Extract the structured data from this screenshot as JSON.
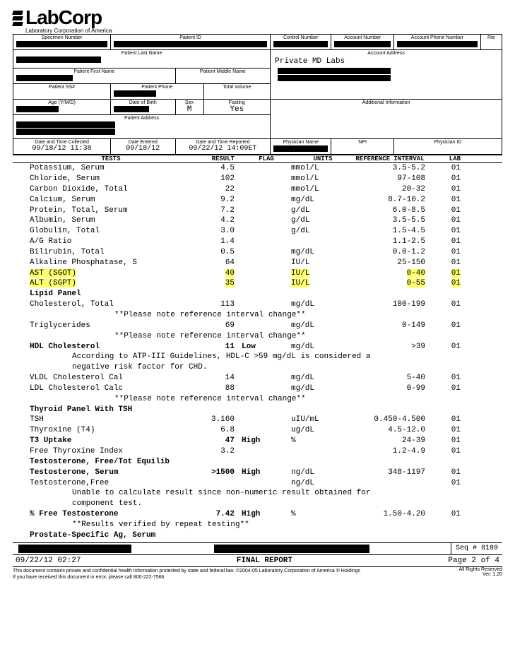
{
  "logo": {
    "main": "LabCorp",
    "sub": "Laboratory Corporation of America"
  },
  "header_labels": {
    "specimen": "Specimen Number",
    "patient_id": "Patient ID",
    "control": "Control Number",
    "account_num": "Account Number",
    "account_phone": "Account Phone Number",
    "rte": "Rte",
    "last_name": "Patient Last Name",
    "account_addr": "Account Address",
    "first_name": "Patient First Name",
    "middle_name": "Patient Middle Name",
    "ssn": "Patient SS#",
    "phone": "Patient Phone",
    "volume": "Total Volume",
    "age": "Age (Y/M/D)",
    "dob": "Date of Birth",
    "sex": "Sex",
    "fasting": "Fasting",
    "address": "Patient Address",
    "additional": "Additional Information",
    "collected": "Date and Time Collected",
    "entered": "Date Entered",
    "reported": "Date and Time Reported",
    "physician": "Physician Name",
    "npi": "NPI",
    "physician_id": "Physician ID"
  },
  "header_values": {
    "account_name": "Private MD Labs",
    "sex": "M",
    "fasting": "Yes",
    "collected": "09/18/12 11:38",
    "entered": "09/18/12",
    "reported": "09/22/12 14:09ET"
  },
  "cols": {
    "tests": "TESTS",
    "result": "RESULT",
    "flag": "FLAG",
    "units": "UNITS",
    "ref": "REFERENCE INTERVAL",
    "lab": "LAB"
  },
  "rows": [
    {
      "t": "Potassium, Serum",
      "r": "4.5",
      "f": "",
      "u": "mmol/L",
      "ref": "3.5-5.2",
      "l": "01"
    },
    {
      "t": "Chloride, Serum",
      "r": "102",
      "f": "",
      "u": "mmol/L",
      "ref": "97-108",
      "l": "01"
    },
    {
      "t": "Carbon Dioxide, Total",
      "r": "22",
      "f": "",
      "u": "mmol/L",
      "ref": "20-32",
      "l": "01"
    },
    {
      "t": "Calcium, Serum",
      "r": "9.2",
      "f": "",
      "u": "mg/dL",
      "ref": "8.7-10.2",
      "l": "01"
    },
    {
      "t": "Protein, Total, Serum",
      "r": "7.2",
      "f": "",
      "u": "g/dL",
      "ref": "6.0-8.5",
      "l": "01"
    },
    {
      "t": "Albumin, Serum",
      "r": "4.2",
      "f": "",
      "u": "g/dL",
      "ref": "3.5-5.5",
      "l": "01"
    },
    {
      "t": "Globulin, Total",
      "r": "3.0",
      "f": "",
      "u": "g/dL",
      "ref": "1.5-4.5",
      "l": "01"
    },
    {
      "t": "A/G Ratio",
      "r": "1.4",
      "f": "",
      "u": "",
      "ref": "1.1-2.5",
      "l": "01"
    },
    {
      "t": "Bilirubin, Total",
      "r": "0.5",
      "f": "",
      "u": "mg/dL",
      "ref": "0.0-1.2",
      "l": "01"
    },
    {
      "t": "Alkaline Phosphatase, S",
      "r": "64",
      "f": "",
      "u": "IU/L",
      "ref": "25-150",
      "l": "01"
    },
    {
      "t": "AST (SGOT)",
      "r": "40",
      "f": "",
      "u": "IU/L",
      "ref": "0-40",
      "l": "01",
      "hl": true
    },
    {
      "t": "ALT (SGPT)",
      "r": "35",
      "f": "",
      "u": "IU/L",
      "ref": "0-55",
      "l": "01",
      "hl": true
    }
  ],
  "lipid_hdr": "Lipid Panel",
  "lipid": [
    {
      "t": "Cholesterol, Total",
      "r": "113",
      "f": "",
      "u": "mg/dL",
      "ref": "100-199",
      "l": "01"
    }
  ],
  "note_ref": "**Please note reference interval change**",
  "trig": {
    "t": "Triglycerides",
    "r": "69",
    "f": "",
    "u": "mg/dL",
    "ref": "0-149",
    "l": "01"
  },
  "hdl": {
    "t": "HDL Cholesterol",
    "r": "11",
    "f": "Low",
    "u": "mg/dL",
    "ref": ">39",
    "l": "01",
    "bold": true
  },
  "hdl_note1": "According to ATP-III Guidelines, HDL-C >59 mg/dL is considered a",
  "hdl_note2": "negative risk factor for CHD.",
  "vldl": {
    "t": "VLDL Cholesterol Cal",
    "r": "14",
    "f": "",
    "u": "mg/dL",
    "ref": "5-40",
    "l": "01"
  },
  "ldl": {
    "t": "LDL Cholesterol Calc",
    "r": "88",
    "f": "",
    "u": "mg/dL",
    "ref": "0-99",
    "l": "01"
  },
  "thyroid_hdr": "Thyroid Panel With TSH",
  "thyroid": [
    {
      "t": "TSH",
      "r": "3.160",
      "f": "",
      "u": "uIU/mL",
      "ref": "0.450-4.500",
      "l": "01"
    },
    {
      "t": "Thyroxine (T4)",
      "r": "6.8",
      "f": "",
      "u": "ug/dL",
      "ref": "4.5-12.0",
      "l": "01"
    },
    {
      "t": "T3 Uptake",
      "r": "47",
      "f": "High",
      "u": "%",
      "ref": "24-39",
      "l": "01",
      "bold": true
    },
    {
      "t": "Free Thyroxine Index",
      "r": "3.2",
      "f": "",
      "u": "",
      "ref": "1.2-4.9",
      "l": "01"
    }
  ],
  "testo_hdr": "Testosterone, Free/Tot Equilib",
  "testo_serum": {
    "t": "Testosterone, Serum",
    "r": ">1500",
    "f": "High",
    "u": "ng/dL",
    "ref": "348-1197",
    "l": "01",
    "bold": true
  },
  "testo_free": {
    "t": "Testosterone,Free",
    "r": "",
    "f": "",
    "u": "ng/dL",
    "ref": "",
    "l": "01"
  },
  "testo_note1": "Unable to calculate result since non-numeric result obtained for",
  "testo_note2": "component test.",
  "pct_free": {
    "t": "% Free Testosterone",
    "r": "7.42",
    "f": "High",
    "u": "%",
    "ref": "1.50-4.20",
    "l": "01",
    "bold": true
  },
  "verified": "**Results verified by repeat testing**",
  "psa": "Prostate-Specific Ag, Serum",
  "seq": "Seq # 8189",
  "footer": {
    "time": "09/22/12 02:27",
    "title": "FINAL REPORT",
    "page": "Page 2 of 4"
  },
  "disclaimer1": "This document contains private and confidential health information protected by state and federal law.  ©2004-05 Laboratory Corporation of America ® Holdings",
  "disclaimer2": "If you have received this document in error, please call  800-222-7566",
  "rights": "All Rights Reserved",
  "ver": "Ver: 1.20"
}
